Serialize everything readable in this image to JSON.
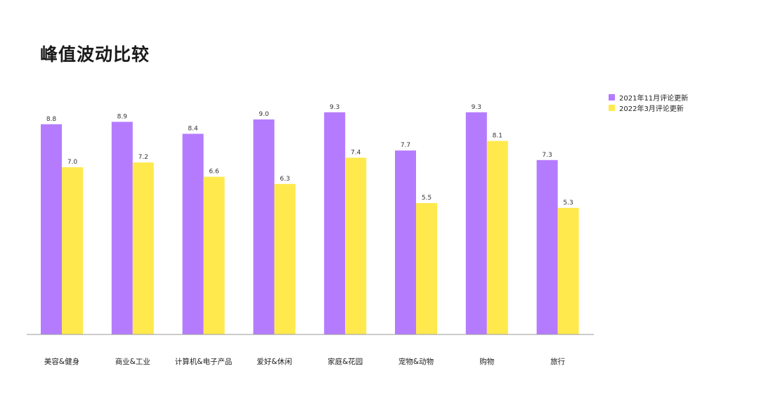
{
  "title": "峰值波动比较",
  "colors": {
    "series_2021": "#b57bff",
    "series_2022": "#ffe94d",
    "axis": "#9a9a9a"
  },
  "chart_data": {
    "type": "bar",
    "title": "峰值波动比较",
    "xlabel": "",
    "ylabel": "",
    "ylim": [
      0,
      10
    ],
    "grid": false,
    "legend_position": "top-right",
    "categories": [
      "美容&健身",
      "商业&工业",
      "计算机&电子产品",
      "爱好&休闲",
      "家庭&花园",
      "宠物&动物",
      "购物",
      "旅行"
    ],
    "series": [
      {
        "name": "2021年11月评论更新",
        "values": [
          8.8,
          8.9,
          8.4,
          9.0,
          9.3,
          7.7,
          9.3,
          7.3
        ],
        "labels": [
          "8.8",
          "8.9",
          "8.4",
          "9.0",
          "9.3",
          "7.7",
          "9.3",
          "7.3"
        ]
      },
      {
        "name": "2022年3月评论更新",
        "values": [
          7.0,
          7.2,
          6.6,
          6.3,
          7.4,
          5.5,
          8.1,
          5.3
        ],
        "labels": [
          "7.0",
          "7.2",
          "6.6",
          "6.3",
          "7.4",
          "5.5",
          "8.1",
          "5.3"
        ]
      }
    ]
  }
}
